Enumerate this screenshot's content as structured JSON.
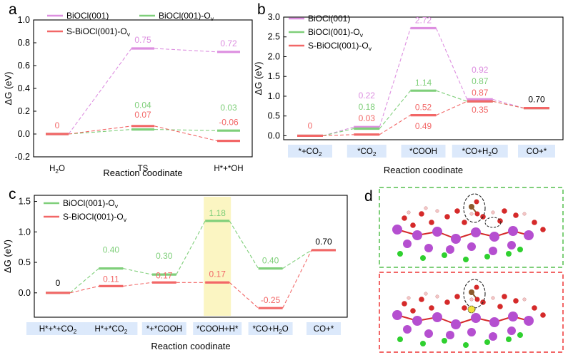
{
  "colors": {
    "pink": "#dd8fe0",
    "green": "#7fcf7a",
    "red": "#f26767",
    "axis": "#000000",
    "box": "#dce9fb",
    "highlight": "#fbf5c2",
    "crystal_bi": "#b54fd0",
    "crystal_o": "#d52a2a",
    "crystal_cl": "#2fd02f",
    "crystal_c": "#8c5a2c"
  },
  "chart_data": [
    {
      "panel": "a",
      "type": "line",
      "title": "",
      "xlabel": "Reaction coodinate",
      "ylabel": "ΔG (eV)",
      "ylim": [
        -0.2,
        1.0
      ],
      "yticks": [
        "-0.2",
        "0.0",
        "0.2",
        "0.4",
        "0.6",
        "0.8",
        "1.0"
      ],
      "ytick_values": [
        -0.2,
        0.0,
        0.2,
        0.4,
        0.6,
        0.8,
        1.0
      ],
      "categories": [
        "H2O",
        "TS",
        "H*+*OH"
      ],
      "legend": [
        "BiOCl(001)",
        "BiOCl(001)-Ov",
        "S-BiOCl(001)-Ov"
      ],
      "series": [
        {
          "name": "BiOCl(001)",
          "color": "pink",
          "values": [
            0,
            0.75,
            0.72
          ],
          "labels": [
            "",
            "0.75",
            "0.72"
          ]
        },
        {
          "name": "BiOCl(001)-Ov",
          "color": "green",
          "values": [
            0,
            0.04,
            0.03
          ],
          "labels": [
            "",
            "0.04",
            "0.03"
          ]
        },
        {
          "name": "S-BiOCl(001)-Ov",
          "color": "red",
          "values": [
            0,
            0.07,
            -0.06
          ],
          "labels": [
            "0",
            "0.07",
            "-0.06"
          ]
        }
      ]
    },
    {
      "panel": "b",
      "type": "line",
      "title": "",
      "xlabel": "Reaction coodinate",
      "ylabel": "ΔG (eV)",
      "ylim": [
        -0.1,
        3.0
      ],
      "yticks": [
        "0.0",
        "0.5",
        "1.0",
        "1.5",
        "2.0",
        "2.5",
        "3.0"
      ],
      "ytick_values": [
        0,
        0.5,
        1.0,
        1.5,
        2.0,
        2.5,
        3.0
      ],
      "categories": [
        "*+CO2",
        "*CO2",
        "*COOH",
        "*CO+H2O",
        "CO+*"
      ],
      "legend": [
        "BiOCl(001)",
        "BiOCl(001)-Ov",
        "S-BiOCl(001)-Ov"
      ],
      "series": [
        {
          "name": "BiOCl(001)",
          "color": "pink",
          "values": [
            0,
            0.22,
            2.72,
            0.92,
            0.7
          ],
          "labels": [
            "",
            "0.22",
            "2.72",
            "0.92",
            ""
          ]
        },
        {
          "name": "BiOCl(001)-Ov",
          "color": "green",
          "values": [
            0,
            0.18,
            1.14,
            0.87,
            0.7
          ],
          "labels": [
            "",
            "0.18",
            "1.14",
            "0.87",
            ""
          ]
        },
        {
          "name": "S-BiOCl(001)-Ov",
          "color": "red",
          "values": [
            0,
            0.03,
            0.52,
            0.87,
            0.7
          ],
          "labels": [
            "0",
            "0.03",
            "0.52",
            "0.87",
            "0.70"
          ]
        }
      ],
      "annotations": [
        "0.49",
        "0.35"
      ]
    },
    {
      "panel": "c",
      "type": "line",
      "title": "",
      "xlabel": "Reaction coodinate",
      "ylabel": "ΔG (eV)",
      "ylim": [
        -0.4,
        1.6
      ],
      "yticks": [
        "0.0",
        "0.5",
        "1.0",
        "1.5"
      ],
      "ytick_values": [
        0,
        0.5,
        1.0,
        1.5
      ],
      "categories": [
        "H*+*+CO2",
        "H*+*CO2",
        "*+*COOH",
        "*COOH+H*",
        "*CO+H2O",
        "CO+*"
      ],
      "legend": [
        "BiOCl(001)-Ov",
        "S-BiOCl(001)-Ov"
      ],
      "highlight_category": "*COOH+H*",
      "series": [
        {
          "name": "BiOCl(001)-Ov",
          "color": "green",
          "values": [
            0,
            0.4,
            0.3,
            1.18,
            0.4,
            0.7
          ],
          "labels": [
            "",
            "0.40",
            "0.30",
            "1.18",
            "0.40",
            ""
          ]
        },
        {
          "name": "S-BiOCl(001)-Ov",
          "color": "red",
          "values": [
            0,
            0.11,
            0.17,
            0.17,
            -0.25,
            0.7
          ],
          "labels": [
            "0",
            "0.11",
            "0.17",
            "0.17",
            "-0.25",
            "0.70"
          ]
        }
      ]
    }
  ],
  "panel_letters": [
    "a",
    "b",
    "c",
    "d"
  ]
}
